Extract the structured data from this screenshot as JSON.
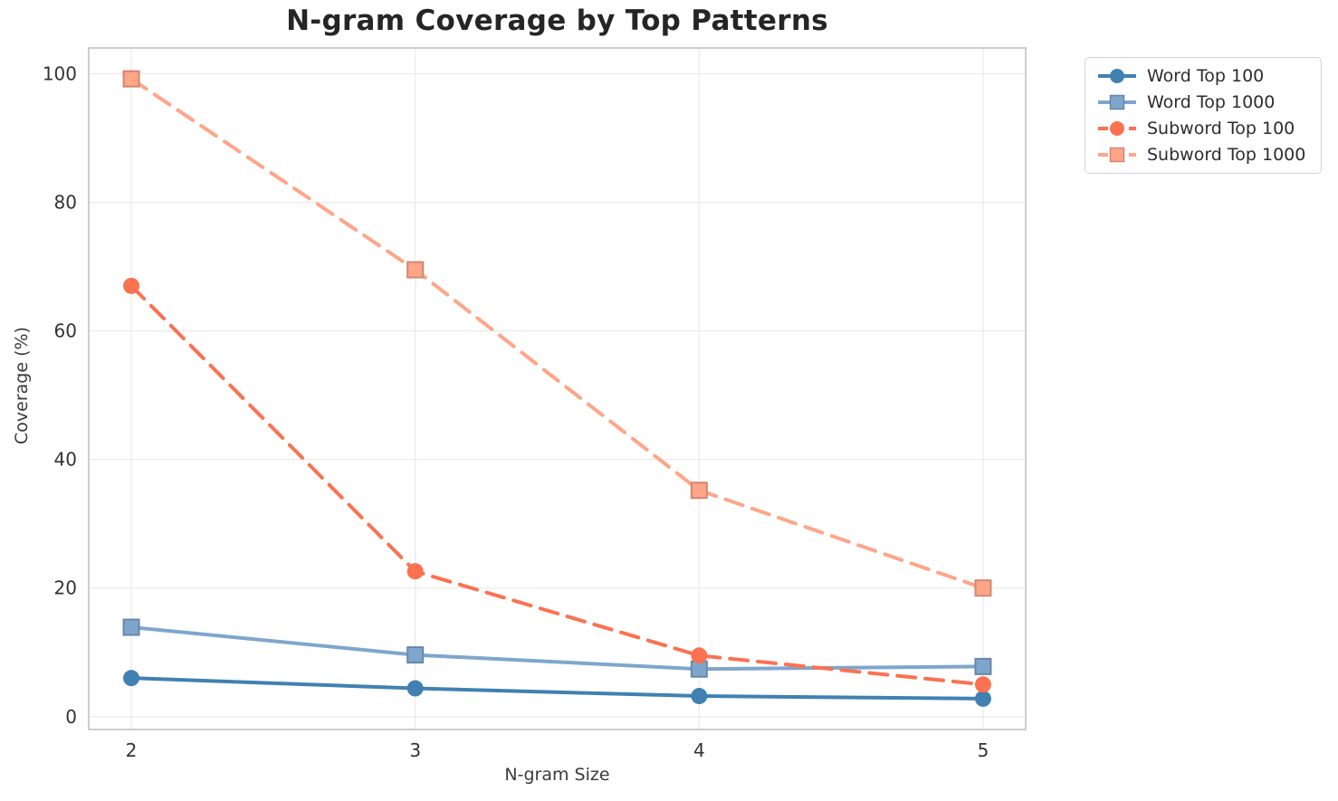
{
  "chart_data": {
    "type": "line",
    "title": "N-gram Coverage by Top Patterns",
    "xlabel": "N-gram Size",
    "ylabel": "Coverage (%)",
    "x": [
      2,
      3,
      4,
      5
    ],
    "xticks": [
      2,
      3,
      4,
      5
    ],
    "yticks": [
      0,
      20,
      40,
      60,
      80,
      100
    ],
    "xlim": [
      1.85,
      5.15
    ],
    "ylim": [
      -2,
      104
    ],
    "grid": true,
    "grid_color": "#ececec",
    "spine_color": "#c9c9c9",
    "legend_position": "outside-right",
    "series": [
      {
        "name": "Word Top 100",
        "values": [
          6.0,
          4.4,
          3.2,
          2.8
        ],
        "color": "#4081B2",
        "line_style": "solid",
        "marker": "circle"
      },
      {
        "name": "Word Top 1000",
        "values": [
          13.9,
          9.6,
          7.4,
          7.8
        ],
        "color": "#7EA6CD",
        "line_style": "solid",
        "marker": "square"
      },
      {
        "name": "Subword Top 100",
        "values": [
          67.0,
          22.6,
          9.5,
          5.0
        ],
        "color": "#FC7150",
        "line_style": "dashed",
        "marker": "circle"
      },
      {
        "name": "Subword Top 1000",
        "values": [
          99.2,
          69.5,
          35.2,
          20.0
        ],
        "color": "#FFA588",
        "line_style": "dashed",
        "marker": "square"
      }
    ]
  }
}
